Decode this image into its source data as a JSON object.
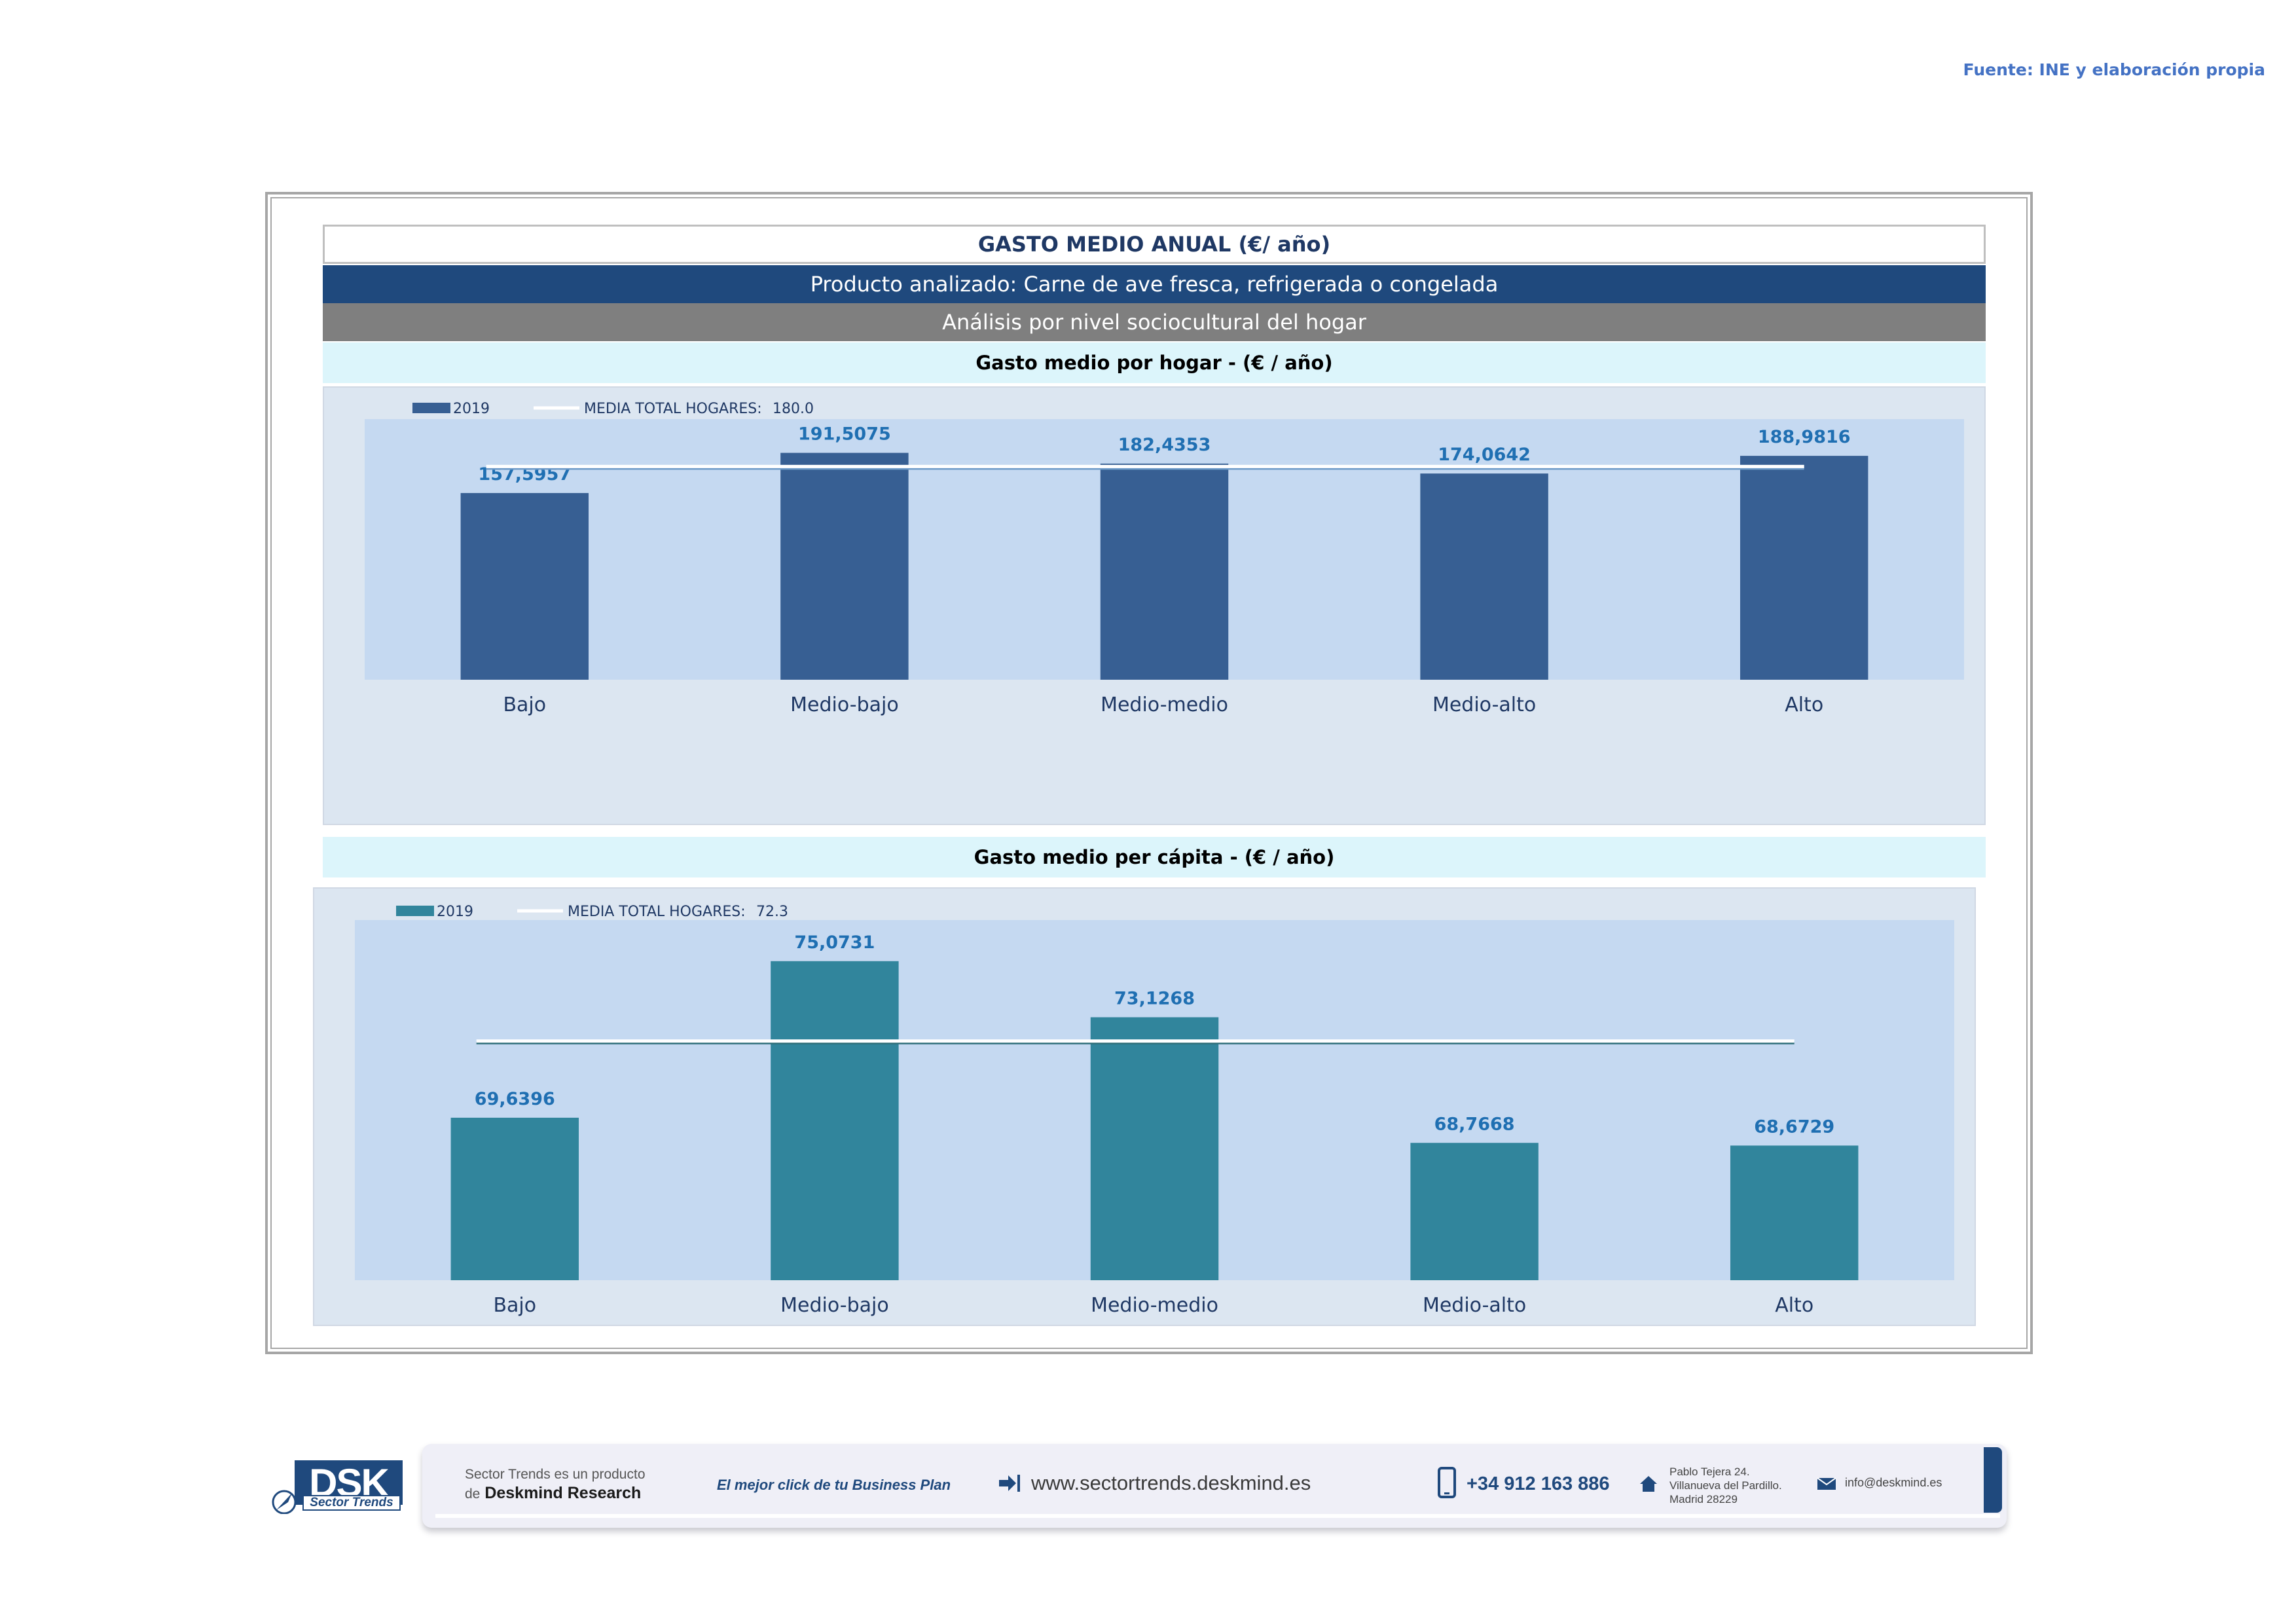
{
  "source": "Fuente: INE y elaboración propia",
  "header": {
    "title": "GASTO MEDIO ANUAL (€/ año)",
    "product": "Producto analizado: Carne de ave fresca, refrigerada o congelada",
    "analysis": "Análisis por nivel sociocultural del hogar"
  },
  "colors": {
    "bar_hogar": "#375f93",
    "bar_capita": "#31859c",
    "label": "#1f6fb2",
    "plot_bg": "#c5d9f1",
    "panel_bg": "#dce6f1",
    "avg_line": "#ffffff"
  },
  "chart_data": [
    {
      "type": "bar",
      "title": "Gasto medio por hogar -  (€ / año)",
      "categories": [
        "Bajo",
        "Medio-bajo",
        "Medio-medio",
        "Medio-alto",
        "Alto"
      ],
      "series": [
        {
          "name": "2019",
          "values": [
            157.5957,
            191.5075,
            182.4353,
            174.0642,
            188.9816
          ],
          "labels": [
            "157,5957",
            "191,5075",
            "182,4353",
            "174,0642",
            "188,9816"
          ]
        }
      ],
      "average": {
        "name": "MEDIA TOTAL  HOGARES:",
        "value": 180.0,
        "label": "180.0"
      },
      "ylim": [
        0,
        220
      ],
      "legend": "top-left",
      "grid": false
    },
    {
      "type": "bar",
      "title": "Gasto medio per cápita -  (€ / año)",
      "categories": [
        "Bajo",
        "Medio-bajo",
        "Medio-medio",
        "Medio-alto",
        "Alto"
      ],
      "series": [
        {
          "name": "2019",
          "values": [
            69.6396,
            75.0731,
            73.1268,
            68.7668,
            68.6729
          ],
          "labels": [
            "69,6396",
            "75,0731",
            "73,1268",
            "68,7668",
            "68,6729"
          ]
        }
      ],
      "average": {
        "name": "MEDIA TOTAL  HOGARES:",
        "value": 72.3,
        "label": "72.3"
      },
      "ylim": [
        64,
        76.5
      ],
      "legend": "top-left",
      "grid": false
    }
  ],
  "footer": {
    "logo": "DSK",
    "logo_sub": "Sector Trends",
    "product_line1": "Sector Trends es un producto",
    "product_line2_prefix": "de",
    "product_line2_brand": "Deskmind Research",
    "slogan": "El mejor click de tu Business Plan",
    "website": "www.sectortrends.deskmind.es",
    "phone": "+34 912 163 886",
    "address": [
      "Pablo Tejera 24.",
      "Villanueva del Pardillo.",
      "Madrid 28229"
    ],
    "email": "info@deskmind.es"
  }
}
